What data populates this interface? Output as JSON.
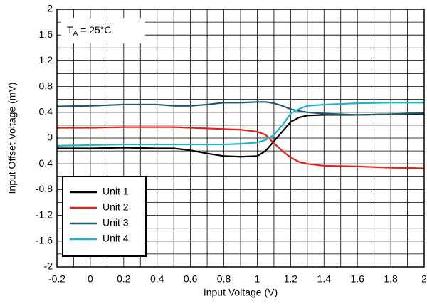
{
  "chart_data": {
    "type": "line",
    "x_label": "Input Voltage (V)",
    "y_label": "Input Offset Voltage (mV)",
    "annotation": {
      "main": "T",
      "sub": "A",
      "rest": " = 25°C"
    },
    "x": [
      -0.2,
      0,
      0.2,
      0.4,
      0.5,
      0.6,
      0.7,
      0.8,
      0.9,
      1.0,
      1.05,
      1.1,
      1.15,
      1.2,
      1.25,
      1.3,
      1.4,
      1.6,
      1.8,
      2.0
    ],
    "series": [
      {
        "name": "Unit 1",
        "color": "#000000",
        "values": [
          -0.16,
          -0.16,
          -0.15,
          -0.16,
          -0.16,
          -0.19,
          -0.24,
          -0.28,
          -0.29,
          -0.28,
          -0.2,
          -0.05,
          0.1,
          0.25,
          0.32,
          0.35,
          0.36,
          0.36,
          0.37,
          0.38
        ]
      },
      {
        "name": "Unit 2",
        "color": "#e8201c",
        "values": [
          0.16,
          0.16,
          0.17,
          0.17,
          0.17,
          0.16,
          0.15,
          0.14,
          0.13,
          0.1,
          0.05,
          -0.08,
          -0.2,
          -0.3,
          -0.37,
          -0.4,
          -0.43,
          -0.44,
          -0.46,
          -0.47
        ]
      },
      {
        "name": "Unit 3",
        "color": "#1f5a6b",
        "values": [
          0.49,
          0.5,
          0.52,
          0.52,
          0.5,
          0.5,
          0.52,
          0.55,
          0.55,
          0.56,
          0.56,
          0.54,
          0.5,
          0.45,
          0.42,
          0.4,
          0.38,
          0.36,
          0.37,
          0.39
        ]
      },
      {
        "name": "Unit 4",
        "color": "#1fb5c8",
        "values": [
          -0.12,
          -0.11,
          -0.1,
          -0.1,
          -0.1,
          -0.1,
          -0.1,
          -0.1,
          -0.09,
          -0.07,
          -0.03,
          0.05,
          0.2,
          0.38,
          0.45,
          0.5,
          0.52,
          0.54,
          0.55,
          0.55
        ]
      }
    ],
    "xlim": [
      -0.2,
      2
    ],
    "xticks": [
      -0.2,
      0,
      0.2,
      0.4,
      0.6,
      0.8,
      1,
      1.2,
      1.4,
      1.6,
      1.8,
      2
    ],
    "ylim": [
      -2,
      2
    ],
    "yticks": [
      -2,
      -1.6,
      -1.2,
      -0.8,
      -0.4,
      0,
      0.4,
      0.8,
      1.2,
      1.6,
      2
    ],
    "grid": true,
    "minor_grid": true,
    "legend": "lower left"
  }
}
